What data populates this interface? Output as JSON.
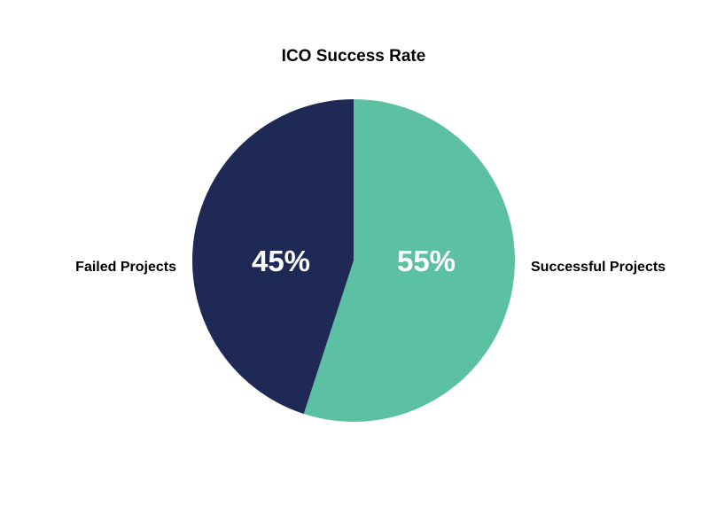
{
  "chart_data": {
    "type": "pie",
    "title": "ICO Success Rate",
    "slices": [
      {
        "label": "Successful Projects",
        "value": 55,
        "value_label": "55%",
        "color": "#5cc1a2"
      },
      {
        "label": "Failed Projects",
        "value": 45,
        "value_label": "45%",
        "color": "#1e2955"
      }
    ],
    "start": "12 o'clock",
    "direction": "clockwise",
    "legend": "none"
  }
}
